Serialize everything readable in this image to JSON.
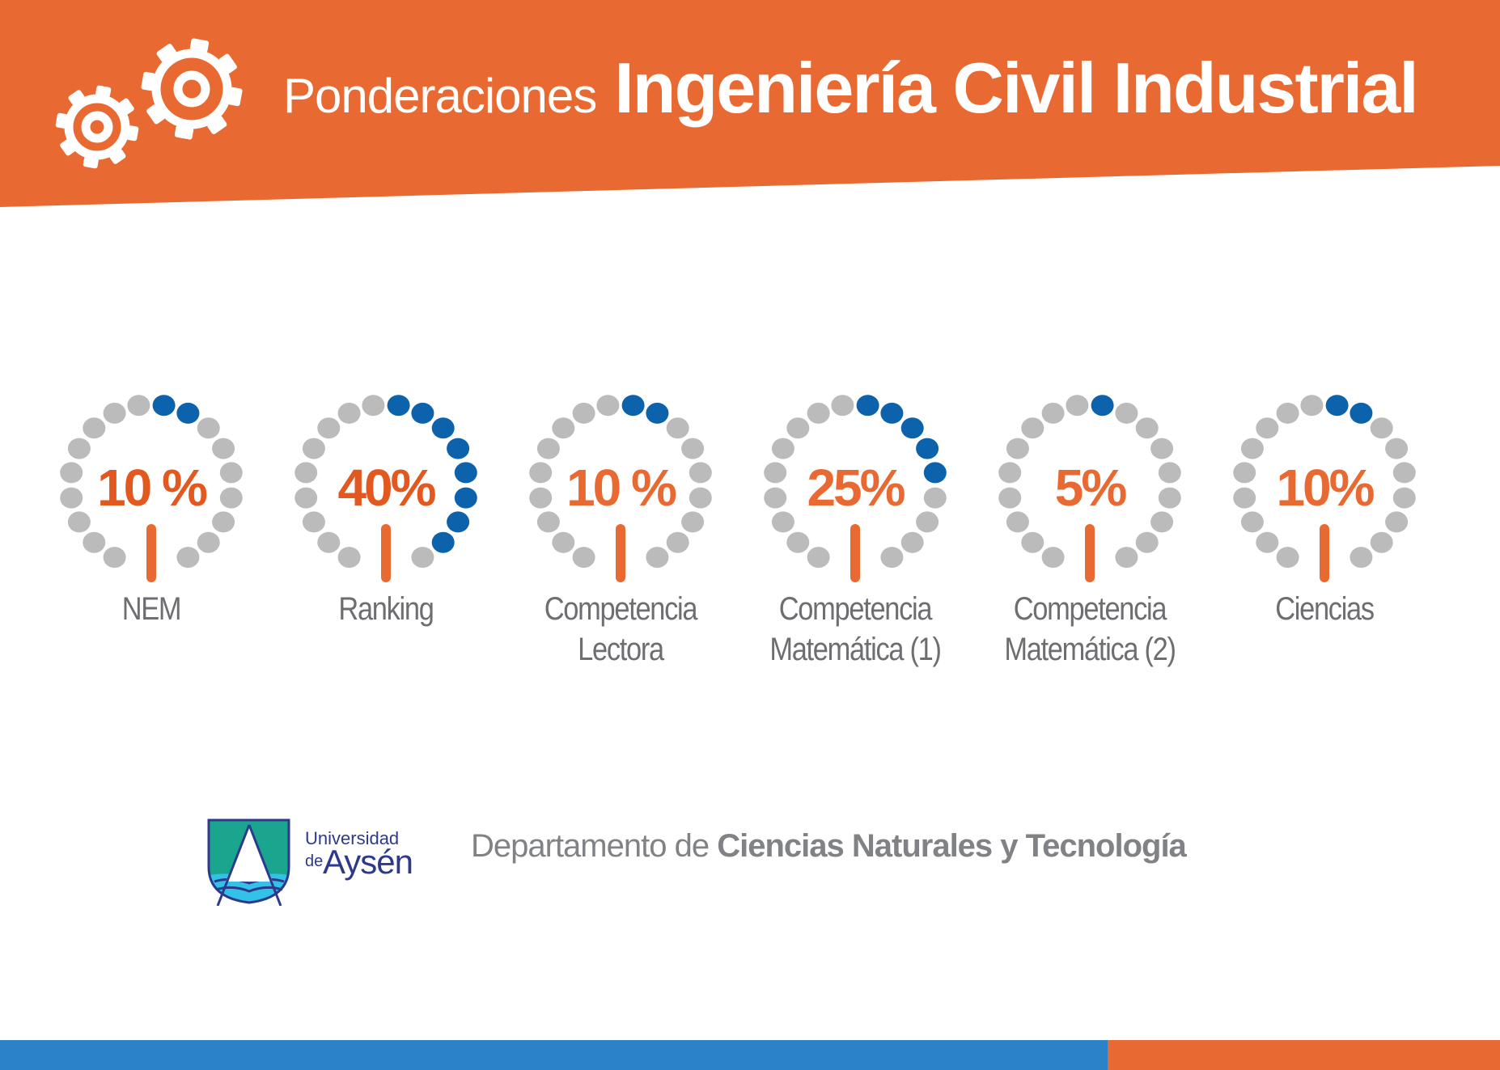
{
  "header": {
    "title_prefix": "Ponderaciones",
    "title_main": "Ingeniería Civil Industrial"
  },
  "icons": {
    "header_icon": "gears-icon"
  },
  "colors": {
    "orange": "#e86a32",
    "blue": "#0d63ab",
    "gray_dot": "#bcbbbb",
    "text_gray": "#6d6e71",
    "footer_blue": "#2b82c6"
  },
  "gauges": [
    {
      "percent_text": "10 %",
      "value": 10,
      "filled_dots": 2,
      "label_lines": [
        "NEM"
      ]
    },
    {
      "percent_text": "40%",
      "value": 40,
      "filled_dots": 8,
      "label_lines": [
        "Ranking"
      ]
    },
    {
      "percent_text": "10 %",
      "value": 10,
      "filled_dots": 2,
      "label_lines": [
        "Competencia",
        "Lectora"
      ]
    },
    {
      "percent_text": "25%",
      "value": 25,
      "filled_dots": 5,
      "label_lines": [
        "Competencia",
        "Matemática (1)"
      ]
    },
    {
      "percent_text": "5%",
      "value": 5,
      "filled_dots": 1,
      "label_lines": [
        "Competencia",
        "Matemática (2)"
      ]
    },
    {
      "percent_text": "10%",
      "value": 10,
      "filled_dots": 2,
      "label_lines": [
        "Ciencias"
      ]
    }
  ],
  "logo": {
    "line1": "Universidad",
    "line2": "de",
    "line3": "Aysén"
  },
  "department": {
    "prefix": "Departamento de",
    "name": "Ciencias Naturales y Tecnología"
  }
}
